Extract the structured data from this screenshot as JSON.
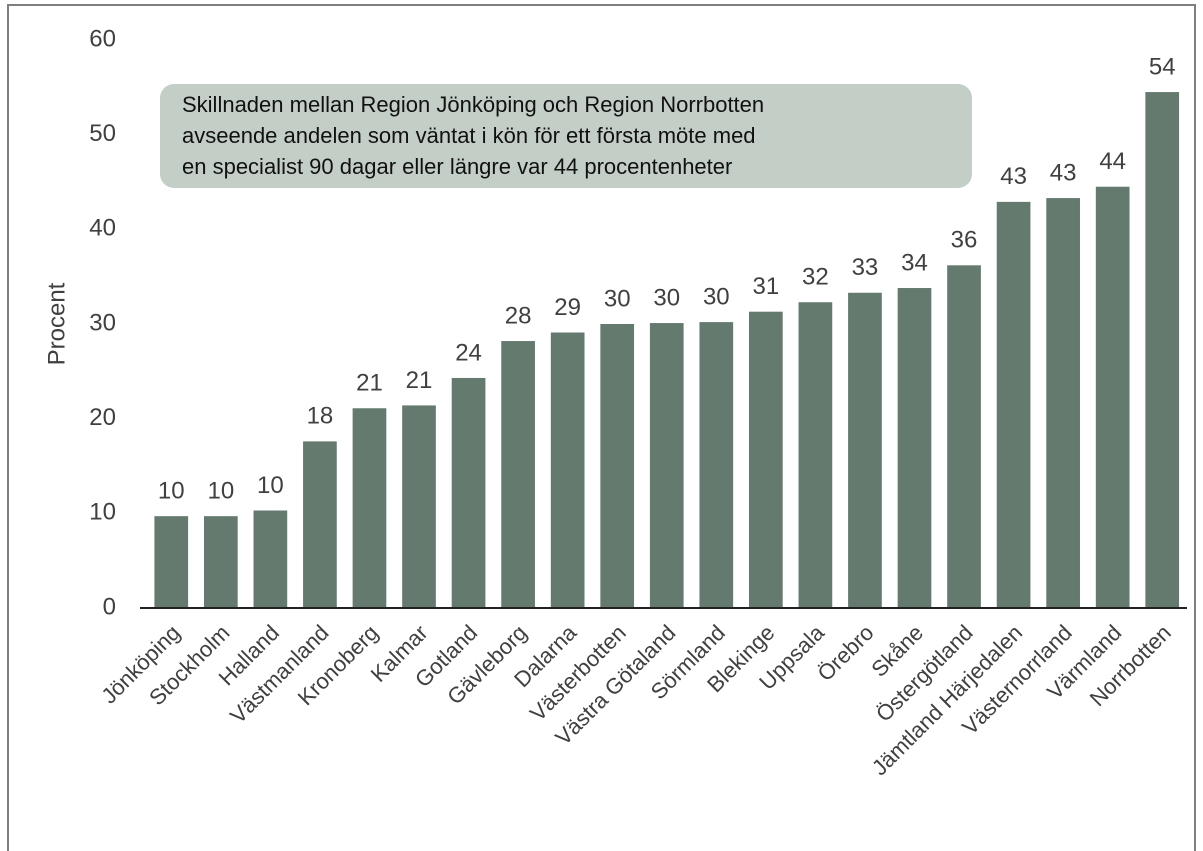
{
  "chart_data": {
    "type": "bar",
    "ylabel": "Procent",
    "annotation": [
      "Skillnaden mellan Region Jönköping och Region Norrbotten",
      "avseende andelen som väntat i kön för ett första möte med",
      "en specialist 90 dagar eller längre var 44 procentenheter"
    ],
    "categories": [
      "Jönköping",
      "Stockholm",
      "Halland",
      "Västmanland",
      "Kronoberg",
      "Kalmar",
      "Gotland",
      "Gävleborg",
      "Dalarna",
      "Västerbotten",
      "Västra Götaland",
      "Sörmland",
      "Blekinge",
      "Uppsala",
      "Örebro",
      "Skåne",
      "Östergötland",
      "Jämtland Härjedalen",
      "Västernorrland",
      "Värmland",
      "Norrbotten"
    ],
    "values": [
      9.7,
      9.7,
      10.3,
      17.6,
      21.1,
      21.4,
      24.3,
      28.2,
      29.1,
      30.0,
      30.1,
      30.2,
      31.3,
      32.3,
      33.3,
      33.8,
      36.2,
      42.9,
      43.3,
      44.5,
      54.5
    ],
    "value_labels": [
      "10",
      "10",
      "10",
      "18",
      "21",
      "21",
      "24",
      "28",
      "29",
      "30",
      "30",
      "30",
      "31",
      "32",
      "33",
      "34",
      "36",
      "43",
      "43",
      "44",
      "54"
    ],
    "color": "#647a6e",
    "ylim": [
      0,
      60
    ],
    "yticks": [
      0,
      10,
      20,
      30,
      40,
      50,
      60
    ],
    "grid": false
  }
}
